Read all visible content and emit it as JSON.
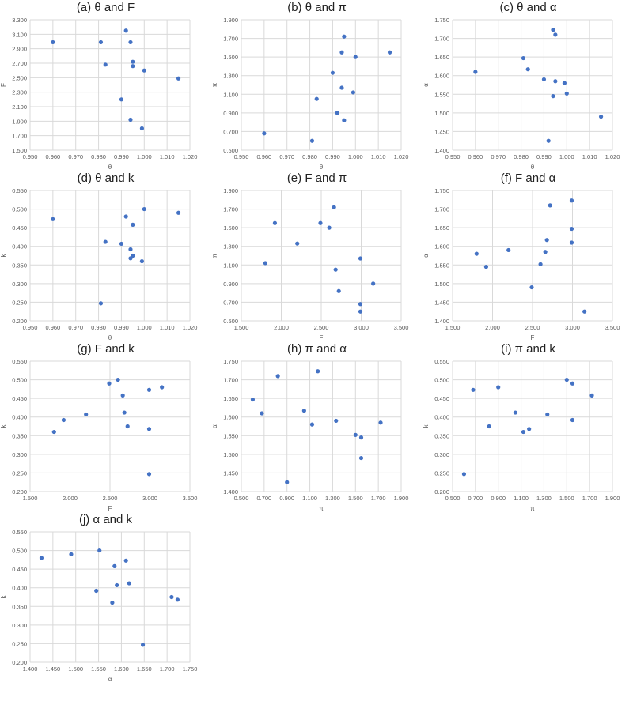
{
  "chart_data": [
    {
      "type": "scatter",
      "title": "(a) θ and F",
      "xlabel": "θ",
      "ylabel": "F",
      "xlim": [
        0.95,
        1.02
      ],
      "xstep": 0.01,
      "ylim": [
        1.5,
        3.3
      ],
      "ystep": 0.2,
      "grid": true,
      "color": "#4472C4",
      "x": [
        0.96,
        0.981,
        0.983,
        0.992,
        0.994,
        0.995,
        0.995,
        1.0,
        1.015,
        0.99,
        0.994,
        0.999
      ],
      "y": [
        2.99,
        2.99,
        2.68,
        3.15,
        2.99,
        2.72,
        2.66,
        2.6,
        2.49,
        2.2,
        1.92,
        1.8
      ]
    },
    {
      "type": "scatter",
      "title": "(b) θ and π",
      "xlabel": "θ",
      "ylabel": "π",
      "xlim": [
        0.95,
        1.02
      ],
      "xstep": 0.01,
      "ylim": [
        0.5,
        1.9
      ],
      "ystep": 0.2,
      "grid": true,
      "color": "#4472C4",
      "x": [
        0.96,
        0.981,
        0.983,
        0.992,
        0.994,
        0.995,
        0.995,
        1.0,
        1.015,
        0.99,
        0.994,
        0.999
      ],
      "y": [
        0.68,
        0.6,
        1.05,
        0.9,
        1.17,
        0.82,
        1.72,
        1.5,
        1.55,
        1.33,
        1.55,
        1.12
      ]
    },
    {
      "type": "scatter",
      "title": "(c) θ and α",
      "xlabel": "θ",
      "ylabel": "α",
      "xlim": [
        0.95,
        1.02
      ],
      "xstep": 0.01,
      "ylim": [
        1.4,
        1.75
      ],
      "ystep": 0.05,
      "grid": true,
      "color": "#4472C4",
      "x": [
        0.96,
        0.981,
        0.983,
        0.992,
        0.994,
        0.995,
        0.995,
        1.0,
        1.015,
        0.99,
        0.994,
        0.999
      ],
      "y": [
        1.61,
        1.647,
        1.617,
        1.425,
        1.723,
        1.71,
        1.585,
        1.552,
        1.49,
        1.59,
        1.545,
        1.58
      ]
    },
    {
      "type": "scatter",
      "title": "(d) θ and k",
      "xlabel": "θ",
      "ylabel": "k",
      "xlim": [
        0.95,
        1.02
      ],
      "xstep": 0.01,
      "ylim": [
        0.2,
        0.55
      ],
      "ystep": 0.05,
      "grid": true,
      "color": "#4472C4",
      "x": [
        0.96,
        0.981,
        0.983,
        0.992,
        0.994,
        0.995,
        0.995,
        1.0,
        1.015,
        0.99,
        0.994,
        0.999
      ],
      "y": [
        0.473,
        0.247,
        0.412,
        0.48,
        0.368,
        0.375,
        0.458,
        0.5,
        0.49,
        0.407,
        0.392,
        0.36
      ]
    },
    {
      "type": "scatter",
      "title": "(e) F and π",
      "xlabel": "F",
      "ylabel": "π",
      "xlim": [
        1.5,
        3.5
      ],
      "xstep": 0.5,
      "ylim": [
        0.5,
        1.9
      ],
      "ystep": 0.2,
      "grid": true,
      "color": "#4472C4",
      "x": [
        2.99,
        2.99,
        2.68,
        3.15,
        2.99,
        2.72,
        2.66,
        2.6,
        2.49,
        2.2,
        1.92,
        1.8
      ],
      "y": [
        0.68,
        0.6,
        1.05,
        0.9,
        1.17,
        0.82,
        1.72,
        1.5,
        1.55,
        1.33,
        1.55,
        1.12
      ]
    },
    {
      "type": "scatter",
      "title": "(f) F and α",
      "xlabel": "F",
      "ylabel": "α",
      "xlim": [
        1.5,
        3.5
      ],
      "xstep": 0.5,
      "ylim": [
        1.4,
        1.75
      ],
      "ystep": 0.05,
      "grid": true,
      "color": "#4472C4",
      "x": [
        2.99,
        2.99,
        2.68,
        3.15,
        2.99,
        2.72,
        2.66,
        2.6,
        2.49,
        2.2,
        1.92,
        1.8
      ],
      "y": [
        1.61,
        1.647,
        1.617,
        1.425,
        1.723,
        1.71,
        1.585,
        1.552,
        1.49,
        1.59,
        1.545,
        1.58
      ]
    },
    {
      "type": "scatter",
      "title": "(g) F and k",
      "xlabel": "F",
      "ylabel": "k",
      "xlim": [
        1.5,
        3.5
      ],
      "xstep": 0.5,
      "ylim": [
        0.2,
        0.55
      ],
      "ystep": 0.05,
      "grid": true,
      "color": "#4472C4",
      "x": [
        2.99,
        2.99,
        2.68,
        3.15,
        2.99,
        2.72,
        2.66,
        2.6,
        2.49,
        2.2,
        1.92,
        1.8
      ],
      "y": [
        0.473,
        0.247,
        0.412,
        0.48,
        0.368,
        0.375,
        0.458,
        0.5,
        0.49,
        0.407,
        0.392,
        0.36
      ]
    },
    {
      "type": "scatter",
      "title": "(h) π and α",
      "xlabel": "π",
      "ylabel": "α",
      "xlim": [
        0.5,
        1.9
      ],
      "xstep": 0.2,
      "ylim": [
        1.4,
        1.75
      ],
      "ystep": 0.05,
      "grid": true,
      "color": "#4472C4",
      "x": [
        0.68,
        0.6,
        1.05,
        0.9,
        1.17,
        0.82,
        1.72,
        1.5,
        1.55,
        1.33,
        1.55,
        1.12
      ],
      "y": [
        1.61,
        1.647,
        1.617,
        1.425,
        1.723,
        1.71,
        1.585,
        1.552,
        1.49,
        1.59,
        1.545,
        1.58
      ]
    },
    {
      "type": "scatter",
      "title": "(i) π and k",
      "xlabel": "π",
      "ylabel": "k",
      "xlim": [
        0.5,
        1.9
      ],
      "xstep": 0.2,
      "ylim": [
        0.2,
        0.55
      ],
      "ystep": 0.05,
      "grid": true,
      "color": "#4472C4",
      "x": [
        0.68,
        0.6,
        1.05,
        0.9,
        1.17,
        0.82,
        1.72,
        1.5,
        1.55,
        1.33,
        1.55,
        1.12
      ],
      "y": [
        0.473,
        0.247,
        0.412,
        0.48,
        0.368,
        0.375,
        0.458,
        0.5,
        0.49,
        0.407,
        0.392,
        0.36
      ]
    },
    {
      "type": "scatter",
      "title": "(j) α and k",
      "xlabel": "α",
      "ylabel": "k",
      "xlim": [
        1.4,
        1.75
      ],
      "xstep": 0.05,
      "ylim": [
        0.2,
        0.55
      ],
      "ystep": 0.05,
      "grid": true,
      "color": "#4472C4",
      "x": [
        1.61,
        1.647,
        1.617,
        1.425,
        1.723,
        1.71,
        1.585,
        1.552,
        1.49,
        1.59,
        1.545,
        1.58
      ],
      "y": [
        0.473,
        0.247,
        0.412,
        0.48,
        0.368,
        0.375,
        0.458,
        0.5,
        0.49,
        0.407,
        0.392,
        0.36
      ]
    }
  ]
}
